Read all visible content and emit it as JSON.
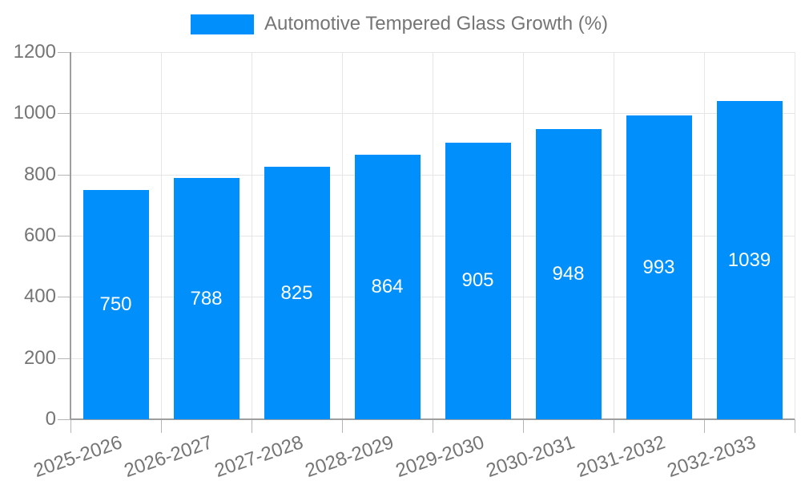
{
  "legend": {
    "label": "Automotive Tempered Glass Growth (%)"
  },
  "chart_data": {
    "type": "bar",
    "title": "Automotive Tempered Glass Growth (%)",
    "categories": [
      "2025-2026",
      "2026-2027",
      "2027-2028",
      "2028-2029",
      "2029-2030",
      "2030-2031",
      "2031-2032",
      "2032-2033"
    ],
    "values": [
      750,
      788,
      825,
      864,
      905,
      948,
      993,
      1039
    ],
    "xlabel": "",
    "ylabel": "",
    "ylim": [
      0,
      1200
    ],
    "yticks": [
      0,
      200,
      400,
      600,
      800,
      1000,
      1200
    ],
    "grid": "horizontal-and-vertical",
    "legend_position": "top",
    "data_labels": "inside-center-white"
  },
  "colors": {
    "bar": "#008ffb",
    "grid": "#e6e6e6",
    "axis": "#9e9e9e",
    "tick": "#b5b5b5",
    "label_text": "#757575",
    "value_label": "#ffffff",
    "background": "#ffffff"
  }
}
